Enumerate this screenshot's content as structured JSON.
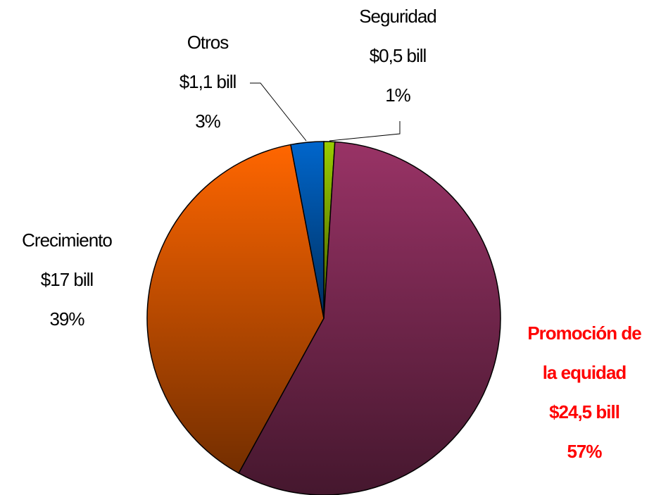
{
  "chart_data": {
    "type": "pie",
    "categories": [
      "Seguridad",
      "Promoción de la equidad",
      "Crecimiento",
      "Otros"
    ],
    "amount_labels": [
      "$0,5 bill",
      "$24,5 bill",
      "$17 bill",
      "$1,1 bill"
    ],
    "values": [
      1,
      57,
      39,
      3
    ],
    "value_labels": [
      "1%",
      "57%",
      "39%",
      "3%"
    ],
    "colors": [
      "#99cc00",
      "#993366",
      "#ff6600",
      "#0066cc"
    ],
    "label_colors": [
      "#000000",
      "#ff0000",
      "#000000",
      "#000000"
    ],
    "start_angle": 0,
    "direction": "clockwise"
  }
}
